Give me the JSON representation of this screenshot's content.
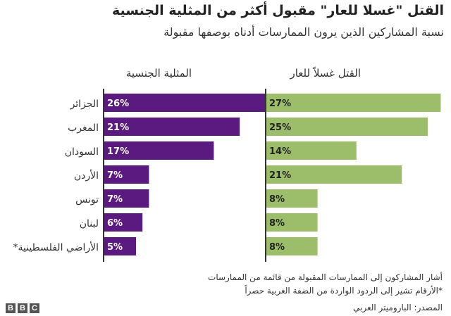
{
  "title": "القتل \"غسلا للعار\" مقبول أكثر من المثلية الجنسية",
  "subtitle": "نسبة المشاركين الذين يرون الممارسات أدناه بوصفها مقبولة",
  "notes": {
    "line1": "أشار المشاركون إلى الممارسات المقبولة من قائمة من الممارسات",
    "line2": "*الأرقام تشير إلى الردود الواردة من الضفة الغربية حصراً"
  },
  "source": "المصدر: الباروميتر العربي",
  "logo": {
    "letters": [
      "B",
      "B",
      "C"
    ]
  },
  "colors": {
    "homosexuality": "#5b1a7f",
    "honor_killing": "#9cbe6b",
    "axis": "#333333"
  },
  "chart_data": {
    "type": "bar",
    "orientation": "horizontal",
    "title": "القتل \"غسلا للعار\" مقبول أكثر من المثلية الجنسية",
    "subtitle": "نسبة المشاركين الذين يرون الممارسات أدناه بوصفها مقبولة",
    "categories": [
      "الجزائر",
      "المغرب",
      "السودان",
      "الأردن",
      "تونس",
      "لبنان",
      "الأراضي الفلسطينية*"
    ],
    "series": [
      {
        "name": "المثلية الجنسية",
        "values": [
          26,
          21,
          17,
          7,
          7,
          6,
          5
        ],
        "labels": [
          "26%",
          "21%",
          "17%",
          "7%",
          "7%",
          "6%",
          "5%"
        ]
      },
      {
        "name": "القتل غسلاً للعار",
        "values": [
          27,
          25,
          14,
          21,
          8,
          8,
          8
        ],
        "labels": [
          "27%",
          "25%",
          "14%",
          "21%",
          "8%",
          "8%",
          "8%"
        ]
      }
    ],
    "xlim": [
      0,
      30
    ],
    "unit": "%"
  }
}
